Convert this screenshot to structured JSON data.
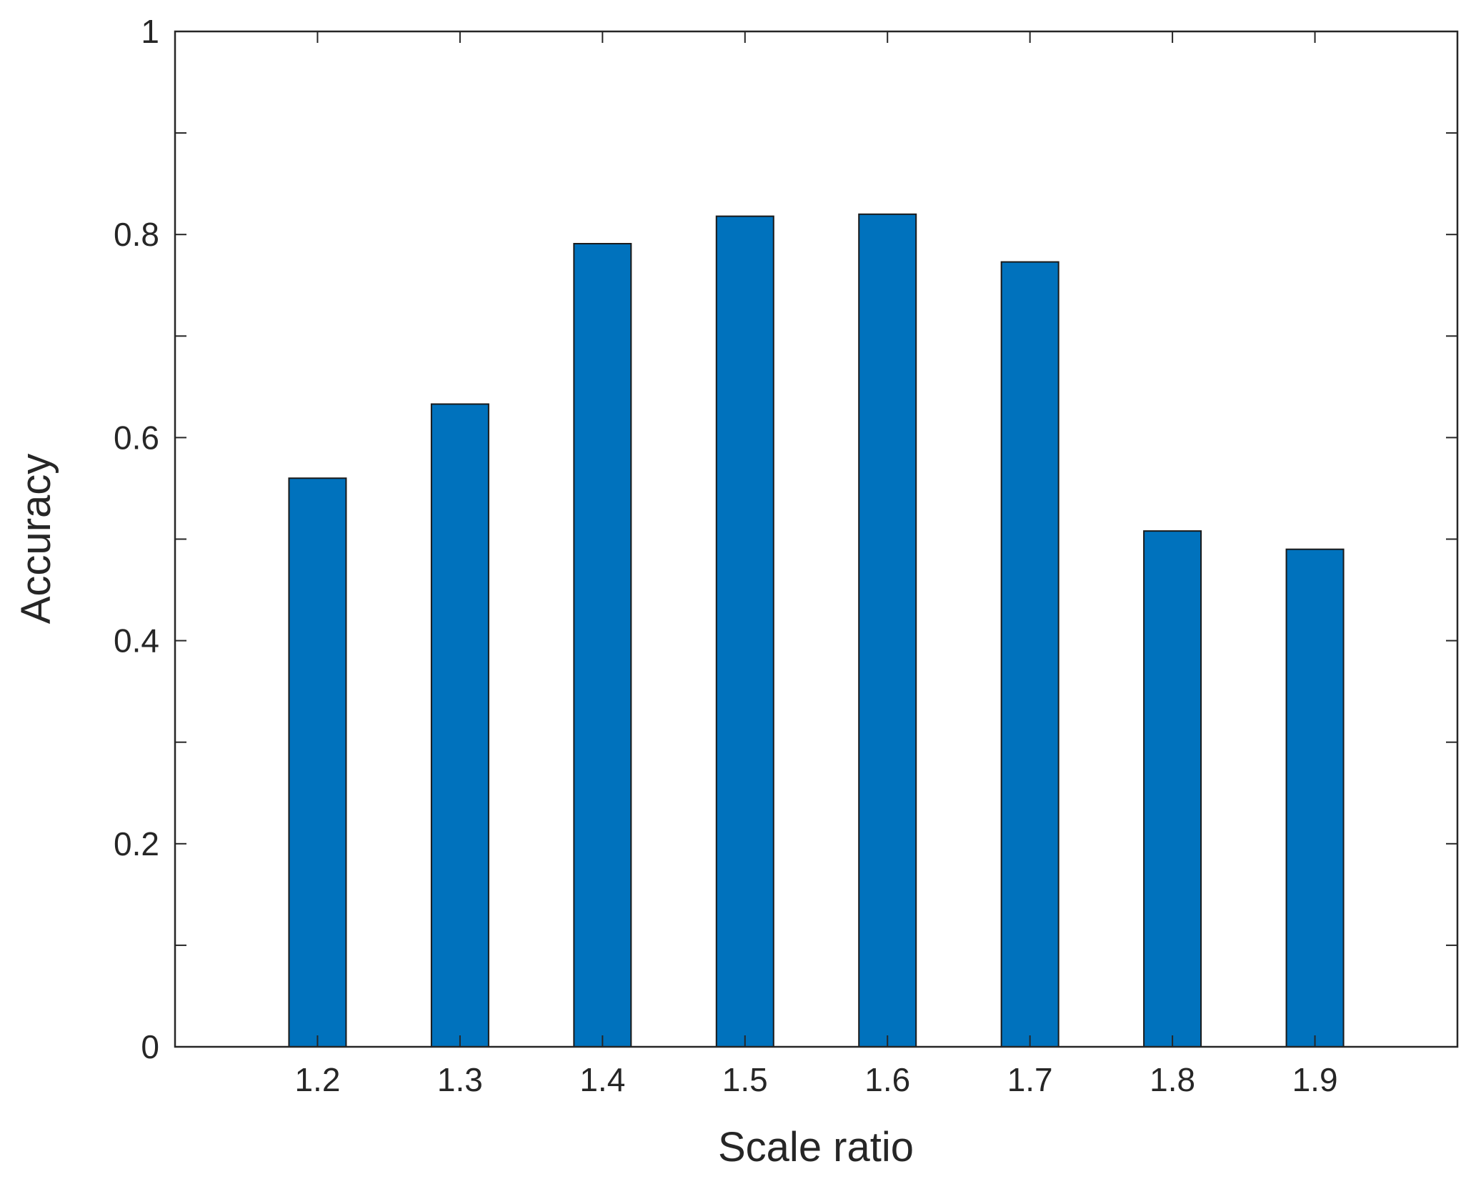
{
  "chart_data": {
    "type": "bar",
    "categories": [
      "1.2",
      "1.3",
      "1.4",
      "1.5",
      "1.6",
      "1.7",
      "1.8",
      "1.9"
    ],
    "values": [
      0.56,
      0.633,
      0.791,
      0.818,
      0.82,
      0.773,
      0.508,
      0.49
    ],
    "xlabel": "Scale ratio",
    "ylabel": "Accuracy",
    "ylim": [
      0,
      1
    ],
    "x_positions": [
      1.2,
      1.3,
      1.4,
      1.5,
      1.6,
      1.7,
      1.8,
      1.9
    ],
    "xlim": [
      1.1,
      2.0
    ],
    "yticks": [
      0,
      0.2,
      0.4,
      0.6,
      0.8,
      1
    ],
    "ytick_labels": [
      "0",
      "0.2",
      "0.4",
      "0.6",
      "0.8",
      "1"
    ],
    "minor_yticks": [
      0.1,
      0.3,
      0.5,
      0.7,
      0.9
    ],
    "bar_color": "#0072BD",
    "edge_color": "#1a1a1a",
    "grid": false,
    "box": true
  }
}
